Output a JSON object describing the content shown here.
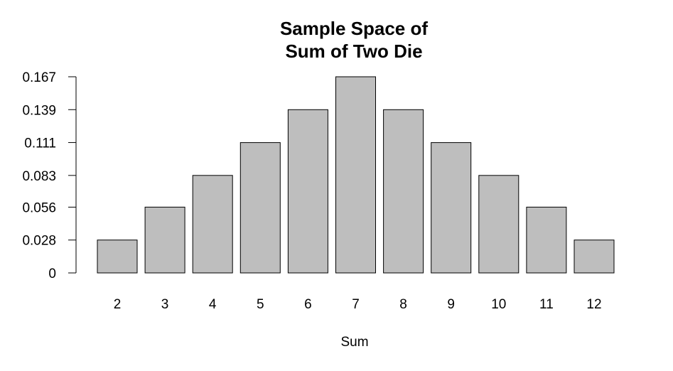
{
  "chart_data": {
    "type": "bar",
    "title": [
      "Sample Space of",
      "Sum of Two Die"
    ],
    "xlabel": "Sum",
    "ylabel": "",
    "categories": [
      "2",
      "3",
      "4",
      "5",
      "6",
      "7",
      "8",
      "9",
      "10",
      "11",
      "12"
    ],
    "values": [
      0.028,
      0.056,
      0.083,
      0.111,
      0.139,
      0.167,
      0.139,
      0.111,
      0.083,
      0.056,
      0.028
    ],
    "yticks": [
      0,
      0.028,
      0.056,
      0.083,
      0.111,
      0.139,
      0.167
    ],
    "ytick_labels": [
      "0",
      "0.028",
      "0.056",
      "0.083",
      "0.111",
      "0.139",
      "0.167"
    ],
    "ylim": [
      0,
      0.167
    ],
    "grid": false,
    "legend": "none",
    "bar_color": "#bebebe",
    "bar_edge_color": "#000000"
  }
}
